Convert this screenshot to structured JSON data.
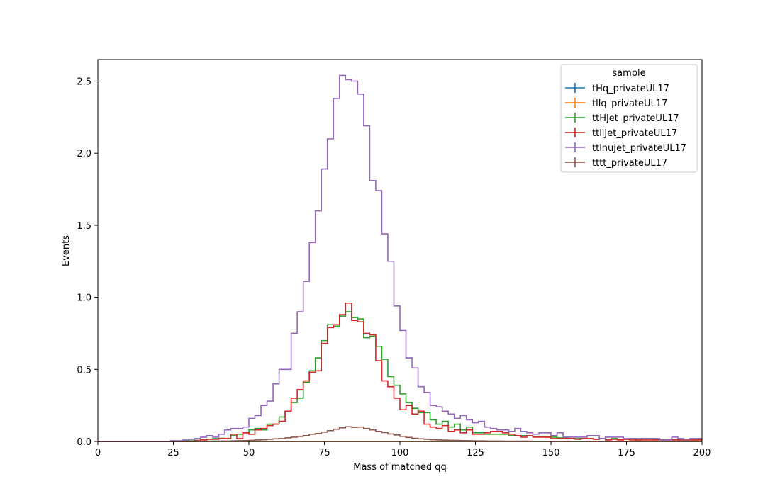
{
  "chart_data": {
    "type": "step-histogram",
    "xlabel": "Mass of matched qq",
    "ylabel": "Events",
    "xlim": [
      0,
      200
    ],
    "ylim": [
      0,
      2.65
    ],
    "x_ticks": [
      "0",
      "25",
      "50",
      "75",
      "100",
      "125",
      "150",
      "175",
      "200"
    ],
    "y_ticks": [
      "0.0",
      "0.5",
      "1.0",
      "1.5",
      "2.0",
      "2.5"
    ],
    "bin_width": 2,
    "bins_start": 0,
    "grid": false,
    "legend": {
      "title": "sample",
      "placement": "upper right"
    },
    "series": [
      {
        "name": "tHq_privateUL17",
        "color": "#1f77b4",
        "values": [
          0,
          0,
          0,
          0,
          0,
          0,
          0,
          0,
          0,
          0,
          0,
          0,
          0,
          0,
          0,
          0,
          0,
          0,
          0,
          0,
          0,
          0,
          0,
          0,
          0,
          0,
          0,
          0,
          0,
          0,
          0,
          0,
          0,
          0,
          0,
          0,
          0,
          0,
          0,
          0,
          0,
          0,
          0,
          0,
          0,
          0,
          0,
          0,
          0,
          0,
          0,
          0,
          0,
          0,
          0,
          0,
          0,
          0,
          0,
          0,
          0,
          0,
          0,
          0,
          0,
          0,
          0,
          0,
          0,
          0,
          0,
          0,
          0,
          0,
          0,
          0,
          0,
          0,
          0,
          0,
          0,
          0,
          0,
          0,
          0,
          0,
          0,
          0,
          0,
          0,
          0,
          0,
          0,
          0,
          0,
          0,
          0,
          0,
          0,
          0
        ]
      },
      {
        "name": "tllq_privateUL17",
        "color": "#ff7f0e",
        "values": [
          0,
          0,
          0,
          0,
          0,
          0,
          0,
          0,
          0,
          0,
          0,
          0,
          0,
          0,
          0,
          0,
          0,
          0,
          0,
          0,
          0,
          0,
          0,
          0,
          0,
          0,
          0,
          0,
          0,
          0,
          0,
          0,
          0,
          0,
          0,
          0,
          0,
          0,
          0,
          0,
          0,
          0,
          0,
          0,
          0,
          0,
          0,
          0,
          0,
          0,
          0,
          0,
          0,
          0,
          0,
          0,
          0,
          0,
          0,
          0,
          0,
          0,
          0,
          0,
          0,
          0,
          0,
          0,
          0,
          0,
          0,
          0,
          0,
          0,
          0,
          0,
          0,
          0,
          0,
          0,
          0,
          0,
          0,
          0,
          0,
          0,
          0,
          0,
          0,
          0,
          0,
          0,
          0,
          0,
          0,
          0,
          0,
          0,
          0,
          0
        ]
      },
      {
        "name": "ttHJet_privateUL17",
        "color": "#2ca02c",
        "values": [
          0,
          0,
          0,
          0,
          0,
          0,
          0,
          0,
          0,
          0,
          0,
          0,
          0,
          0.003,
          0.005,
          0.005,
          0.008,
          0.012,
          0.015,
          0.02,
          0.022,
          0.02,
          0.04,
          0.05,
          0.06,
          0.08,
          0.09,
          0.08,
          0.12,
          0.12,
          0.17,
          0.21,
          0.27,
          0.3,
          0.41,
          0.49,
          0.58,
          0.7,
          0.81,
          0.8,
          0.87,
          0.9,
          0.86,
          0.85,
          0.72,
          0.73,
          0.66,
          0.57,
          0.45,
          0.39,
          0.33,
          0.27,
          0.23,
          0.2,
          0.2,
          0.15,
          0.12,
          0.14,
          0.1,
          0.12,
          0.08,
          0.1,
          0.06,
          0.06,
          0.05,
          0.05,
          0.05,
          0.05,
          0.04,
          0.04,
          0.04,
          0.04,
          0.035,
          0.035,
          0.03,
          0.03,
          0.025,
          0.025,
          0.02,
          0.02,
          0.02,
          0.02,
          0.015,
          0.02,
          0.015,
          0.02,
          0.015,
          0.015,
          0.02,
          0.01,
          0.02,
          0.02,
          0.015,
          0.01,
          0.01,
          0.01,
          0.01,
          0.01,
          0.01,
          0.01
        ]
      },
      {
        "name": "ttllJet_privateUL17",
        "color": "#d62728",
        "values": [
          0,
          0,
          0,
          0,
          0,
          0,
          0,
          0,
          0,
          0,
          0,
          0,
          0,
          0,
          0,
          0,
          0.005,
          0.01,
          0.015,
          0.015,
          0.02,
          0.02,
          0.05,
          0.02,
          0.06,
          0.05,
          0.08,
          0.09,
          0.11,
          0.12,
          0.14,
          0.21,
          0.3,
          0.36,
          0.42,
          0.48,
          0.49,
          0.68,
          0.79,
          0.81,
          0.88,
          0.96,
          0.84,
          0.83,
          0.75,
          0.74,
          0.56,
          0.42,
          0.38,
          0.3,
          0.22,
          0.25,
          0.19,
          0.21,
          0.12,
          0.1,
          0.09,
          0.11,
          0.07,
          0.08,
          0.06,
          0.08,
          0.05,
          0.05,
          0.06,
          0.07,
          0.07,
          0.06,
          0.05,
          0.04,
          0.03,
          0.04,
          0.03,
          0.03,
          0.03,
          0.02,
          0.02,
          0.02,
          0.02,
          0.015,
          0.02,
          0.02,
          0.015,
          0.02,
          0.01,
          0.015,
          0.01,
          0.015,
          0.01,
          0.01,
          0.01,
          0.01,
          0.01,
          0.01,
          0.01,
          0.01,
          0.01,
          0.01,
          0.01,
          0.01
        ]
      },
      {
        "name": "ttlnuJet_privateUL17",
        "color": "#9467bd",
        "values": [
          0,
          0,
          0,
          0,
          0,
          0,
          0,
          0,
          0,
          0,
          0,
          0,
          0.005,
          0.005,
          0.01,
          0.015,
          0.02,
          0.03,
          0.04,
          0.03,
          0.05,
          0.08,
          0.09,
          0.09,
          0.1,
          0.16,
          0.18,
          0.25,
          0.28,
          0.4,
          0.5,
          0.5,
          0.75,
          0.9,
          1.11,
          1.38,
          1.6,
          1.89,
          2.1,
          2.38,
          2.54,
          2.51,
          2.5,
          2.41,
          2.19,
          1.81,
          1.74,
          1.44,
          1.25,
          0.94,
          0.77,
          0.58,
          0.51,
          0.38,
          0.34,
          0.25,
          0.24,
          0.21,
          0.19,
          0.16,
          0.18,
          0.15,
          0.13,
          0.14,
          0.1,
          0.09,
          0.08,
          0.08,
          0.07,
          0.09,
          0.07,
          0.06,
          0.05,
          0.06,
          0.06,
          0.04,
          0.06,
          0.03,
          0.03,
          0.03,
          0.03,
          0.04,
          0.04,
          0.02,
          0.03,
          0.03,
          0.03,
          0.02,
          0.02,
          0.02,
          0.02,
          0.02,
          0.02,
          0.01,
          0.01,
          0.03,
          0.02,
          0.015,
          0.02,
          0.02
        ]
      },
      {
        "name": "tttt_privateUL17",
        "color": "#8c564b",
        "values": [
          0,
          0,
          0,
          0,
          0,
          0,
          0,
          0,
          0,
          0,
          0,
          0,
          0,
          0,
          0,
          0,
          0,
          0.001,
          0.002,
          0.002,
          0.003,
          0.003,
          0.004,
          0.005,
          0.006,
          0.008,
          0.01,
          0.012,
          0.015,
          0.018,
          0.02,
          0.025,
          0.03,
          0.035,
          0.04,
          0.05,
          0.055,
          0.065,
          0.075,
          0.085,
          0.095,
          0.102,
          0.098,
          0.1,
          0.09,
          0.08,
          0.07,
          0.062,
          0.052,
          0.045,
          0.035,
          0.028,
          0.022,
          0.018,
          0.015,
          0.012,
          0.01,
          0.009,
          0.008,
          0.007,
          0.006,
          0.005,
          0.004,
          0.004,
          0.003,
          0.003,
          0.003,
          0.002,
          0.002,
          0.002,
          0.002,
          0.002,
          0.001,
          0.001,
          0.001,
          0.001,
          0.001,
          0.001,
          0.001,
          0.001,
          0.001,
          0.001,
          0.001,
          0.001,
          0.001,
          0.001,
          0.001,
          0.001,
          0.001,
          0.001,
          0.001,
          0.001,
          0.001,
          0.001,
          0.001,
          0.001,
          0.001,
          0.001,
          0.001,
          0.001
        ]
      }
    ]
  }
}
